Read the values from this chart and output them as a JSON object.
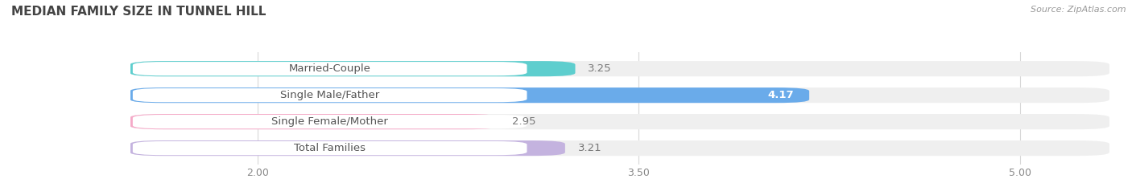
{
  "title": "MEDIAN FAMILY SIZE IN TUNNEL HILL",
  "source": "Source: ZipAtlas.com",
  "categories": [
    "Married-Couple",
    "Single Male/Father",
    "Single Female/Mother",
    "Total Families"
  ],
  "values": [
    3.25,
    4.17,
    2.95,
    3.21
  ],
  "bar_colors": [
    "#5ecece",
    "#6aabea",
    "#f5aac8",
    "#c4b3df"
  ],
  "xlim_min": 1.5,
  "xlim_max": 5.35,
  "data_min": 1.5,
  "xticks": [
    2.0,
    3.5,
    5.0
  ],
  "label_fontsize": 9.5,
  "value_fontsize": 9.5,
  "title_fontsize": 11,
  "bar_height": 0.58,
  "bar_gap": 0.2,
  "bg_bar_color": "#efefef",
  "label_pill_color": "#ffffff",
  "grid_color": "#d8d8d8",
  "value_inside_idx": 1,
  "value_inside_color": "#ffffff"
}
